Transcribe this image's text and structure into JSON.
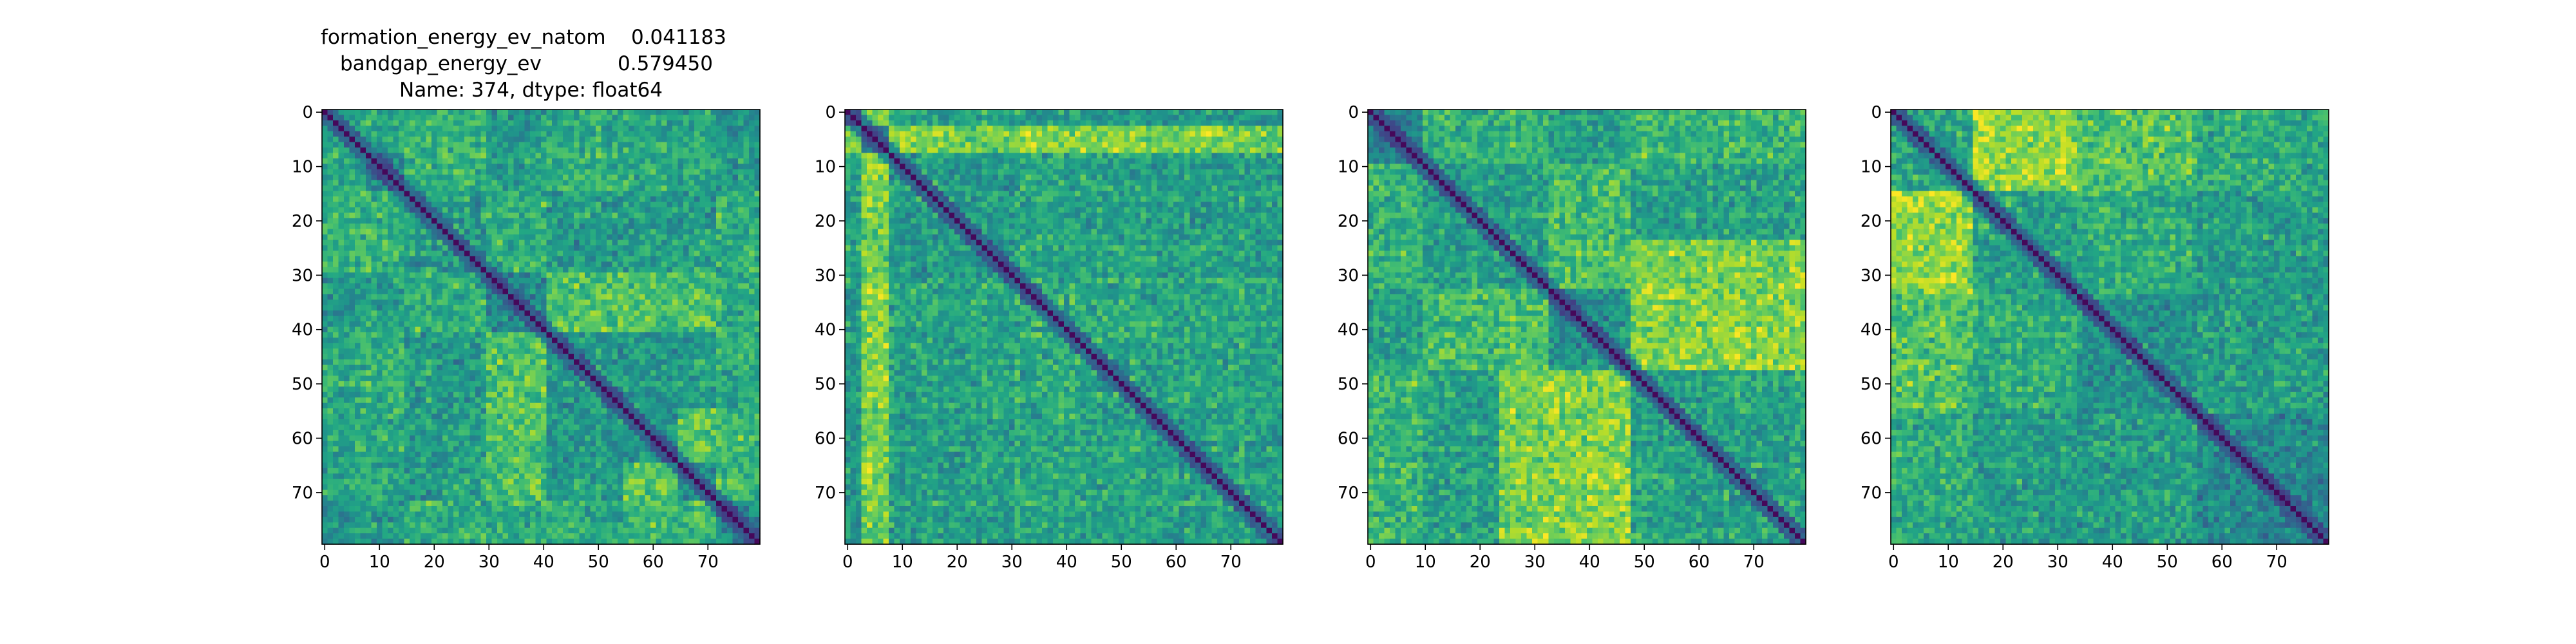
{
  "chart_data": [
    {
      "type": "heatmap",
      "title_lines": [
        "formation_energy_ev_natom    0.041183",
        "bandgap_energy_ev            0.579450",
        "Name: 374, dtype: float64"
      ],
      "size": 80,
      "xticks": [
        0,
        10,
        20,
        30,
        40,
        50,
        60,
        70
      ],
      "yticks": [
        0,
        10,
        20,
        30,
        40,
        50,
        60,
        70
      ],
      "xticklabels": [
        "0",
        "10",
        "20",
        "30",
        "40",
        "50",
        "60",
        "70"
      ],
      "yticklabels": [
        "0",
        "10",
        "20",
        "30",
        "40",
        "50",
        "60",
        "70"
      ],
      "colormap": "viridis",
      "diagonal": "low",
      "blocks": [
        0,
        8,
        15,
        30,
        41,
        55,
        65,
        72,
        80
      ],
      "seed": 374
    },
    {
      "type": "heatmap",
      "size": 80,
      "xticks": [
        0,
        10,
        20,
        30,
        40,
        50,
        60,
        70
      ],
      "yticks": [
        0,
        10,
        20,
        30,
        40,
        50,
        60,
        70
      ],
      "xticklabels": [
        "0",
        "10",
        "20",
        "30",
        "40",
        "50",
        "60",
        "70"
      ],
      "yticklabels": [
        "0",
        "10",
        "20",
        "30",
        "40",
        "50",
        "60",
        "70"
      ],
      "colormap": "viridis",
      "diagonal": "low",
      "blocks": [
        0,
        3,
        8,
        20,
        31,
        41,
        55,
        80
      ],
      "seed": 91
    },
    {
      "type": "heatmap",
      "size": 80,
      "xticks": [
        0,
        10,
        20,
        30,
        40,
        50,
        60,
        70
      ],
      "yticks": [
        0,
        10,
        20,
        30,
        40,
        50,
        60,
        70
      ],
      "xticklabels": [
        "0",
        "10",
        "20",
        "30",
        "40",
        "50",
        "60",
        "70"
      ],
      "yticklabels": [
        "0",
        "10",
        "20",
        "30",
        "40",
        "50",
        "60",
        "70"
      ],
      "colormap": "viridis",
      "diagonal": "low",
      "blocks": [
        0,
        10,
        24,
        33,
        48,
        80
      ],
      "seed": 17
    },
    {
      "type": "heatmap",
      "size": 80,
      "xticks": [
        0,
        10,
        20,
        30,
        40,
        50,
        60,
        70
      ],
      "yticks": [
        0,
        10,
        20,
        30,
        40,
        50,
        60,
        70
      ],
      "xticklabels": [
        "0",
        "10",
        "20",
        "30",
        "40",
        "50",
        "60",
        "70"
      ],
      "yticklabels": [
        "0",
        "10",
        "20",
        "30",
        "40",
        "50",
        "60",
        "70"
      ],
      "colormap": "viridis",
      "diagonal": "low",
      "blocks": [
        0,
        15,
        34,
        56,
        80
      ],
      "seed": 53
    }
  ]
}
